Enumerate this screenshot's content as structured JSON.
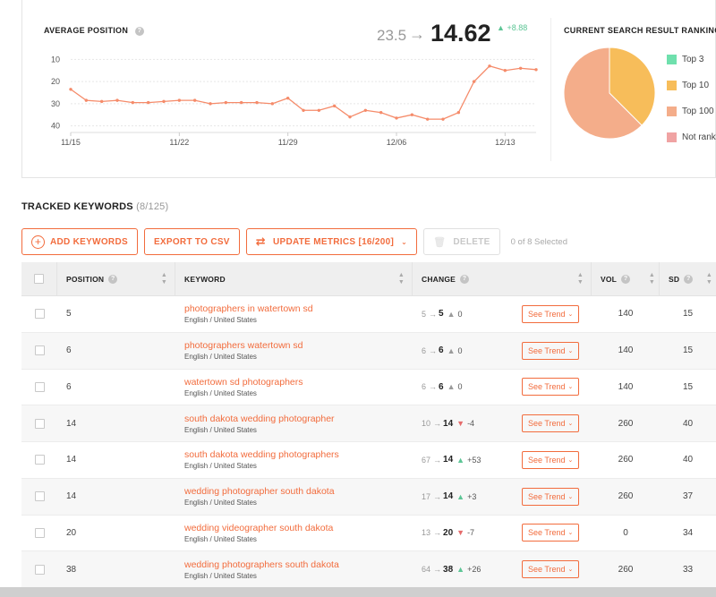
{
  "average_position": {
    "title": "AVERAGE POSITION",
    "help_icon": "?",
    "from": "23.5",
    "arrow": "→",
    "to": "14.62",
    "delta_icon": "▲",
    "delta": "+8.88",
    "delta_color": "#5cc595",
    "line_color": "#f58b6a"
  },
  "chart_data": {
    "type": "line",
    "title": "AVERAGE POSITION",
    "xlabel": "",
    "ylabel": "",
    "y_inverted": true,
    "ylim": [
      5,
      43
    ],
    "yticks": [
      10,
      20,
      30,
      40
    ],
    "xtick_labels": [
      "11/15",
      "11/22",
      "11/29",
      "12/06",
      "12/13"
    ],
    "xtick_index": [
      0,
      7,
      14,
      21,
      28
    ],
    "grid": true,
    "series": [
      {
        "values": [
          23.5,
          28.5,
          29,
          28.5,
          29.5,
          29.5,
          29,
          28.5,
          28.5,
          30,
          29.5,
          29.5,
          29.5,
          30,
          27.5,
          33,
          33,
          31,
          36,
          33,
          34,
          36.5,
          35,
          37,
          37,
          34,
          20,
          13,
          15,
          14,
          14.62
        ]
      }
    ]
  },
  "rankings": {
    "title": "CURRENT SEARCH RESULT RANKINGS",
    "chart": {
      "type": "pie",
      "slices": [
        {
          "label": "Top 3",
          "value": 0,
          "color": "#6fe0ad"
        },
        {
          "label": "Top 10",
          "value": 3,
          "color": "#f7bd5a"
        },
        {
          "label": "Top 100",
          "value": 5,
          "color": "#f4ad8a"
        },
        {
          "label": "Not ranked",
          "value": 0,
          "color": "#f0a3a3"
        }
      ]
    },
    "legend": [
      {
        "label": "Top 3",
        "color": "#6fe0ad"
      },
      {
        "label": "Top 10",
        "color": "#f7bd5a"
      },
      {
        "label": "Top 100",
        "color": "#f4ad8a"
      },
      {
        "label": "Not ranked",
        "color": "#f0a3a3"
      }
    ]
  },
  "tracked": {
    "title": "TRACKED KEYWORDS",
    "count": "(8/125)"
  },
  "toolbar": {
    "add_icon": "+",
    "add_label": "ADD KEYWORDS",
    "export_label": "EXPORT TO CSV",
    "update_icon": "⇄",
    "update_label": "UPDATE METRICS",
    "update_count": "[16/200]",
    "caret": "⌄",
    "delete_icon": "🗑",
    "delete_label": "DELETE",
    "selected_text": "0 of 8 Selected"
  },
  "table": {
    "headers": {
      "position": "POSITION",
      "keyword": "KEYWORD",
      "change": "CHANGE",
      "vol": "VOL",
      "sd": "SD",
      "help": "?",
      "sort": "⌃⌄"
    },
    "trend_label": "See Trend",
    "trend_caret": "⌄",
    "rows": [
      {
        "position": "5",
        "keyword": "photographers in watertown sd",
        "location": "English / United States",
        "from": "5",
        "to": "5",
        "dir": "zero",
        "icon": "▲",
        "diff": "0",
        "vol": "140",
        "sd": "15"
      },
      {
        "position": "6",
        "keyword": "photographers watertown sd",
        "location": "English / United States",
        "from": "6",
        "to": "6",
        "dir": "zero",
        "icon": "▲",
        "diff": "0",
        "vol": "140",
        "sd": "15"
      },
      {
        "position": "6",
        "keyword": "watertown sd photographers",
        "location": "English / United States",
        "from": "6",
        "to": "6",
        "dir": "zero",
        "icon": "▲",
        "diff": "0",
        "vol": "140",
        "sd": "15"
      },
      {
        "position": "14",
        "keyword": "south dakota wedding photographer",
        "location": "English / United States",
        "from": "10",
        "to": "14",
        "dir": "down",
        "icon": "▼",
        "diff": "-4",
        "vol": "260",
        "sd": "40"
      },
      {
        "position": "14",
        "keyword": "south dakota wedding photographers",
        "location": "English / United States",
        "from": "67",
        "to": "14",
        "dir": "up",
        "icon": "▲",
        "diff": "+53",
        "vol": "260",
        "sd": "40"
      },
      {
        "position": "14",
        "keyword": "wedding photographer south dakota",
        "location": "English / United States",
        "from": "17",
        "to": "14",
        "dir": "up",
        "icon": "▲",
        "diff": "+3",
        "vol": "260",
        "sd": "37"
      },
      {
        "position": "20",
        "keyword": "wedding videographer south dakota",
        "location": "English / United States",
        "from": "13",
        "to": "20",
        "dir": "down",
        "icon": "▼",
        "diff": "-7",
        "vol": "0",
        "sd": "34"
      },
      {
        "position": "38",
        "keyword": "wedding photographers south dakota",
        "location": "English / United States",
        "from": "64",
        "to": "38",
        "dir": "up",
        "icon": "▲",
        "diff": "+26",
        "vol": "260",
        "sd": "33"
      }
    ]
  }
}
